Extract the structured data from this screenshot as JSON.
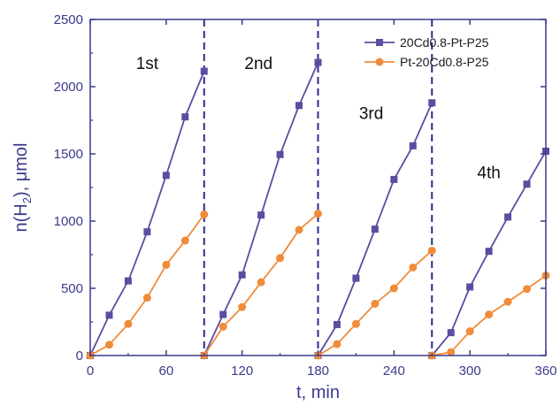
{
  "chart_data": {
    "type": "line",
    "xlabel": "t, min",
    "ylabel_main": "n(H",
    "ylabel_sub": "2",
    "ylabel_tail": "), μmol",
    "xlim": [
      0,
      360
    ],
    "ylim": [
      0,
      2500
    ],
    "xticks": [
      0,
      60,
      120,
      180,
      240,
      300,
      360
    ],
    "yticks": [
      0,
      500,
      1000,
      1500,
      2000,
      2500
    ],
    "cycle_boundaries": [
      90,
      180,
      270
    ],
    "run_labels": [
      {
        "text": "1st",
        "x": 45,
        "y": 2130
      },
      {
        "text": "2nd",
        "x": 133,
        "y": 2130
      },
      {
        "text": "3rd",
        "x": 222,
        "y": 1760
      },
      {
        "text": "4th",
        "x": 315,
        "y": 1320
      }
    ],
    "legend_position": "top-right",
    "series": [
      {
        "name": "20Cd0.8-Pt-P25",
        "color": "#5b4da0",
        "marker": "square",
        "segments": [
          {
            "x": [
              0,
              15,
              30,
              45,
              60,
              75,
              90
            ],
            "y": [
              0,
              300,
              555,
              920,
              1340,
              1775,
              2115
            ]
          },
          {
            "x": [
              90,
              105,
              120,
              135,
              150,
              165,
              180
            ],
            "y": [
              0,
              305,
              600,
              1045,
              1495,
              1860,
              2180
            ]
          },
          {
            "x": [
              180,
              195,
              210,
              225,
              240,
              255,
              270
            ],
            "y": [
              0,
              230,
              575,
              940,
              1310,
              1560,
              1880
            ]
          },
          {
            "x": [
              270,
              285,
              300,
              315,
              330,
              345,
              360
            ],
            "y": [
              0,
              170,
              510,
              775,
              1030,
              1275,
              1520
            ]
          }
        ]
      },
      {
        "name": "Pt-20Cd0.8-P25",
        "color": "#f08c3a",
        "marker": "circle",
        "segments": [
          {
            "x": [
              0,
              15,
              30,
              45,
              60,
              75,
              90
            ],
            "y": [
              0,
              80,
              235,
              430,
              675,
              855,
              1050
            ]
          },
          {
            "x": [
              90,
              105,
              120,
              135,
              150,
              165,
              180
            ],
            "y": [
              0,
              215,
              360,
              545,
              725,
              935,
              1055
            ]
          },
          {
            "x": [
              180,
              195,
              210,
              225,
              240,
              255,
              270
            ],
            "y": [
              0,
              85,
              235,
              385,
              500,
              655,
              780
            ]
          },
          {
            "x": [
              270,
              285,
              300,
              315,
              330,
              345,
              360
            ],
            "y": [
              0,
              25,
              180,
              305,
              400,
              495,
              595
            ]
          }
        ]
      }
    ]
  }
}
